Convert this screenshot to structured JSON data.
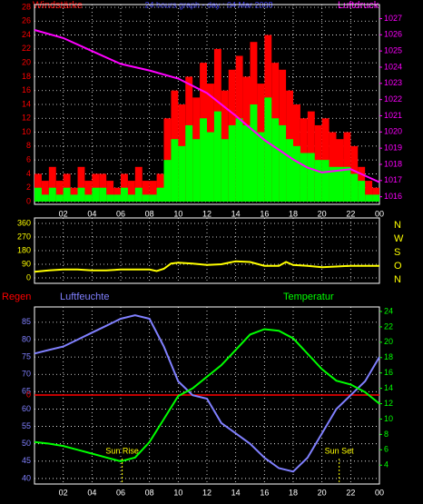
{
  "chart_data": [
    {
      "type": "bar",
      "title": "24 hours graph - day : 04 Mar 2008",
      "left_label": "Windstärke",
      "right_label": "Luftdruck",
      "xlim": [
        0,
        24
      ],
      "xticks": [
        {
          "value": 2,
          "label": "02"
        },
        {
          "value": 4,
          "label": "04"
        },
        {
          "value": 6,
          "label": "06"
        },
        {
          "value": 8,
          "label": "08"
        },
        10,
        12,
        14,
        16,
        18,
        20,
        22,
        {
          "value": 24,
          "label": "00"
        }
      ],
      "ylim": [
        0,
        28
      ],
      "yticks": [
        0,
        2,
        4,
        6,
        8,
        10,
        12,
        14,
        16,
        18,
        20,
        22,
        24,
        26,
        28
      ],
      "y2lim": [
        1015.7,
        1027.7
      ],
      "y2ticks": [
        1016,
        1017,
        1018,
        1019,
        1020,
        1021,
        1022,
        1023,
        1024,
        1025,
        1026,
        1027
      ],
      "grid": true,
      "series": [
        {
          "color": "#ff0000",
          "width": 0.5,
          "x": [
            0,
            0.5,
            1,
            1.5,
            2,
            2.5,
            3,
            3.5,
            4,
            4.5,
            5,
            5.5,
            6,
            6.5,
            7,
            7.5,
            8,
            8.5,
            9,
            9.5,
            10,
            10.5,
            11,
            11.5,
            12,
            12.5,
            13,
            13.5,
            14,
            14.5,
            15,
            15.5,
            16,
            16.5,
            17,
            17.5,
            18,
            18.5,
            19,
            19.5,
            20,
            20.5,
            21,
            21.5,
            22,
            22.5,
            23,
            23.5
          ],
          "values": [
            4,
            3,
            5,
            3,
            4,
            2,
            5,
            3,
            4,
            4,
            3,
            2,
            4,
            3,
            5,
            3,
            3,
            4,
            12,
            16,
            14,
            18,
            15,
            20,
            17,
            22,
            16,
            19,
            21,
            18,
            23,
            17,
            24,
            20,
            19,
            16,
            14,
            12,
            13,
            11,
            12,
            10,
            9,
            10,
            8,
            5,
            3,
            2
          ]
        },
        {
          "color": "#00ff00",
          "width": 0.5,
          "x": [
            0,
            0.5,
            1,
            1.5,
            2,
            2.5,
            3,
            3.5,
            4,
            4.5,
            5,
            5.5,
            6,
            6.5,
            7,
            7.5,
            8,
            8.5,
            9,
            9.5,
            10,
            10.5,
            11,
            11.5,
            12,
            12.5,
            13,
            13.5,
            14,
            14.5,
            15,
            15.5,
            16,
            16.5,
            17,
            17.5,
            18,
            18.5,
            19,
            19.5,
            20,
            20.5,
            21,
            21.5,
            22,
            22.5,
            23,
            23.5
          ],
          "values": [
            2,
            1,
            2,
            1,
            2,
            1,
            2,
            1,
            2,
            2,
            1,
            1,
            2,
            1,
            2,
            1,
            1,
            2,
            6,
            9,
            8,
            11,
            9,
            12,
            10,
            13,
            9,
            11,
            12,
            11,
            14,
            10,
            15,
            12,
            11,
            9,
            8,
            7,
            7,
            6,
            6,
            5,
            5,
            5,
            4,
            3,
            1,
            1
          ]
        },
        {
          "type": "line",
          "axis": "y2",
          "color": "#ff00ff",
          "x": [
            0,
            2,
            4,
            6,
            8,
            10,
            12,
            14,
            16,
            18,
            19,
            20,
            22,
            23,
            24
          ],
          "values": [
            1026.3,
            1025.8,
            1025,
            1024.2,
            1023.8,
            1023.3,
            1022.4,
            1021,
            1019.5,
            1018.3,
            1017.8,
            1017.5,
            1017.7,
            1017.3,
            1016.9
          ]
        }
      ]
    },
    {
      "type": "line",
      "xlim": [
        0,
        24
      ],
      "ylim": [
        0,
        360
      ],
      "yticks": [
        0,
        90,
        180,
        270,
        360
      ],
      "y2labels": [
        "N",
        "W",
        "S",
        "O",
        "N"
      ],
      "grid": true,
      "series": [
        {
          "color": "#ffff00",
          "x": [
            0,
            1,
            2,
            3,
            4,
            5,
            6,
            7,
            8,
            8.5,
            9,
            9.5,
            10,
            11,
            12,
            13,
            14,
            15,
            16,
            17,
            17.5,
            18,
            19,
            20,
            21,
            22,
            23,
            24
          ],
          "values": [
            40,
            50,
            55,
            55,
            50,
            50,
            55,
            55,
            55,
            45,
            60,
            95,
            100,
            95,
            85,
            90,
            110,
            105,
            80,
            80,
            105,
            85,
            80,
            70,
            75,
            80,
            80,
            80
          ]
        }
      ]
    },
    {
      "type": "line",
      "rain_label": "Regen",
      "left_label": "Luftfeuchte",
      "right_label": "Temperatur",
      "xlim": [
        0,
        24
      ],
      "xticks": [
        {
          "value": 2,
          "label": "02"
        },
        {
          "value": 4,
          "label": "04"
        },
        {
          "value": 6,
          "label": "06"
        },
        {
          "value": 8,
          "label": "08"
        },
        10,
        12,
        14,
        16,
        18,
        20,
        22,
        {
          "value": 24,
          "label": "00"
        }
      ],
      "ylim": [
        39.2,
        88.1
      ],
      "yticks": [
        40,
        45,
        50,
        55,
        60,
        65,
        70,
        75,
        80,
        85
      ],
      "y2lim": [
        1.9,
        24
      ],
      "y2ticks": [
        4,
        6,
        8,
        10,
        12,
        14,
        16,
        18,
        20,
        22,
        24
      ],
      "rain_value": 0,
      "grid": true,
      "annotations": [
        {
          "text": "Sun Rise",
          "x": 6.1
        },
        {
          "text": "Sun Set",
          "x": 21.2
        }
      ],
      "series": [
        {
          "color": "#8080ff",
          "x": [
            0,
            1,
            2,
            3,
            4,
            5,
            6,
            7,
            8,
            9,
            10,
            11,
            12,
            13,
            14,
            15,
            16,
            17,
            18,
            19,
            20,
            21,
            22,
            23,
            24
          ],
          "values": [
            76,
            77,
            78,
            80,
            82,
            84,
            86,
            87,
            86,
            78,
            68,
            64,
            63,
            56,
            53,
            50,
            46,
            43,
            42,
            46,
            53,
            60,
            64,
            68,
            75
          ]
        },
        {
          "axis": "y2",
          "color": "#00ff00",
          "x": [
            0,
            1,
            2,
            3,
            4,
            5,
            6,
            7,
            8,
            9,
            10,
            11,
            12,
            13,
            14,
            15,
            16,
            17,
            18,
            19,
            20,
            21,
            22,
            23,
            24
          ],
          "values": [
            7,
            6.8,
            6.5,
            6,
            5.5,
            5,
            4.5,
            5,
            7,
            10,
            13,
            14,
            15.5,
            17,
            19,
            21,
            21.7,
            21.5,
            20.5,
            18.5,
            16.5,
            15,
            14.5,
            13.5,
            12
          ]
        }
      ]
    }
  ]
}
